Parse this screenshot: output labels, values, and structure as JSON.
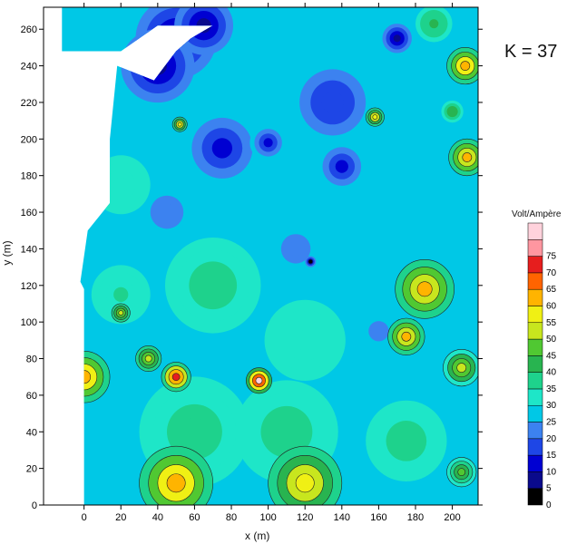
{
  "chart_data": {
    "type": "heatmap",
    "annotation": "K = 37",
    "xlabel": "x (m)",
    "ylabel": "y (m)",
    "xlim": [
      -22,
      214
    ],
    "ylim": [
      0,
      272
    ],
    "x_ticks": [
      0,
      20,
      40,
      60,
      80,
      100,
      120,
      140,
      160,
      180,
      200
    ],
    "y_ticks": [
      0,
      20,
      40,
      60,
      80,
      100,
      120,
      140,
      160,
      180,
      200,
      220,
      240,
      260
    ],
    "colorbar": {
      "title": "Volt/Ampère",
      "ticks": [
        0,
        5,
        10,
        15,
        20,
        25,
        30,
        35,
        40,
        45,
        50,
        55,
        60,
        65,
        70,
        75
      ],
      "colors": [
        "#000000",
        "#0a0a8c",
        "#0000d2",
        "#1e46e6",
        "#3c82f0",
        "#00c8e6",
        "#1ee6c8",
        "#1ed28c",
        "#28b450",
        "#50c832",
        "#c8e61e",
        "#f0f014",
        "#ffb400",
        "#ff6400",
        "#e61e1e",
        "#ff96a0",
        "#ffd2dc"
      ]
    },
    "blobs": [
      {
        "x": 50,
        "y": 255,
        "r": 22,
        "v": 5
      },
      {
        "x": 40,
        "y": 240,
        "r": 20,
        "v": 6
      },
      {
        "x": 65,
        "y": 262,
        "r": 16,
        "v": 4
      },
      {
        "x": 170,
        "y": 255,
        "r": 8,
        "v": 6
      },
      {
        "x": 75,
        "y": 195,
        "r": 22,
        "v": 12
      },
      {
        "x": 135,
        "y": 220,
        "r": 24,
        "v": 14
      },
      {
        "x": 140,
        "y": 185,
        "r": 14,
        "v": 10
      },
      {
        "x": 100,
        "y": 198,
        "r": 10,
        "v": 11
      },
      {
        "x": 45,
        "y": 160,
        "r": 18,
        "v": 18
      },
      {
        "x": 160,
        "y": 95,
        "r": 22,
        "v": 22
      },
      {
        "x": 115,
        "y": 140,
        "r": 16,
        "v": 20
      },
      {
        "x": 20,
        "y": 175,
        "r": 16,
        "v": 30
      },
      {
        "x": 70,
        "y": 120,
        "r": 26,
        "v": 35
      },
      {
        "x": 150,
        "y": 130,
        "r": 20,
        "v": 25
      },
      {
        "x": 60,
        "y": 40,
        "r": 30,
        "v": 36
      },
      {
        "x": 110,
        "y": 40,
        "r": 28,
        "v": 37
      },
      {
        "x": 175,
        "y": 35,
        "r": 22,
        "v": 36
      },
      {
        "x": 20,
        "y": 115,
        "r": 16,
        "v": 34
      },
      {
        "x": 120,
        "y": 90,
        "r": 22,
        "v": 32
      },
      {
        "x": 0,
        "y": 70,
        "r": 14,
        "v": 62
      },
      {
        "x": 50,
        "y": 70,
        "r": 8,
        "v": 68
      },
      {
        "x": 95,
        "y": 68,
        "r": 7,
        "v": 78
      },
      {
        "x": 50,
        "y": 12,
        "r": 20,
        "v": 62
      },
      {
        "x": 120,
        "y": 12,
        "r": 20,
        "v": 55
      },
      {
        "x": 185,
        "y": 118,
        "r": 16,
        "v": 60
      },
      {
        "x": 175,
        "y": 92,
        "r": 10,
        "v": 58
      },
      {
        "x": 207,
        "y": 240,
        "r": 10,
        "v": 62
      },
      {
        "x": 208,
        "y": 190,
        "r": 10,
        "v": 60
      },
      {
        "x": 205,
        "y": 75,
        "r": 10,
        "v": 48
      },
      {
        "x": 205,
        "y": 18,
        "r": 8,
        "v": 45
      },
      {
        "x": 190,
        "y": 263,
        "r": 10,
        "v": 40
      },
      {
        "x": 123,
        "y": 133,
        "r": 3,
        "v": 0
      },
      {
        "x": 158,
        "y": 212,
        "r": 5,
        "v": 55
      },
      {
        "x": 52,
        "y": 208,
        "r": 4,
        "v": 55
      },
      {
        "x": 200,
        "y": 215,
        "r": 6,
        "v": 42
      },
      {
        "x": 20,
        "y": 105,
        "r": 5,
        "v": 50
      },
      {
        "x": 35,
        "y": 80,
        "r": 7,
        "v": 50
      }
    ]
  }
}
